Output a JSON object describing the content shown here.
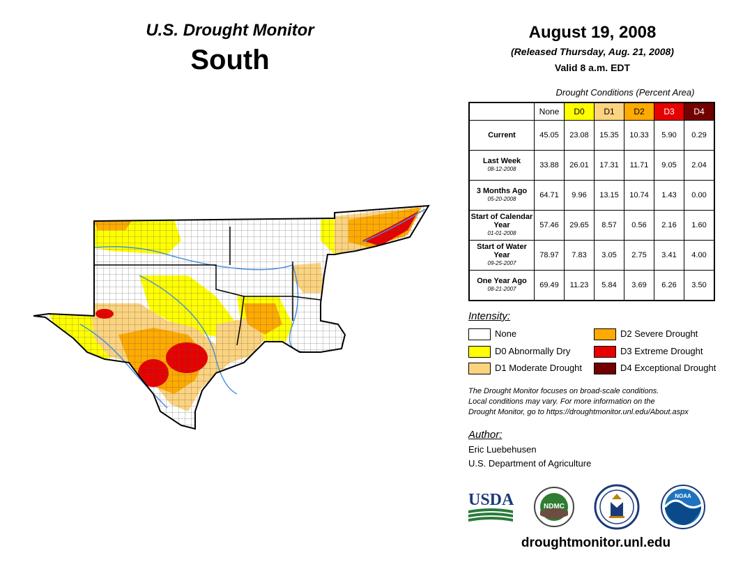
{
  "header": {
    "title": "U.S. Drought Monitor",
    "region": "South",
    "date": "August 19, 2008",
    "released": "(Released Thursday, Aug. 21, 2008)",
    "valid": "Valid 8 a.m. EDT"
  },
  "table": {
    "caption": "Drought Conditions (Percent Area)",
    "columns": [
      {
        "label": "None",
        "color": "#ffffff"
      },
      {
        "label": "D0",
        "color": "#ffff00"
      },
      {
        "label": "D1",
        "color": "#fcd37f"
      },
      {
        "label": "D2",
        "color": "#ffaa00"
      },
      {
        "label": "D3",
        "color": "#e60000"
      },
      {
        "label": "D4",
        "color": "#730000"
      }
    ],
    "rows": [
      {
        "label": "Current",
        "sub": "",
        "values": [
          "45.05",
          "23.08",
          "15.35",
          "10.33",
          "5.90",
          "0.29"
        ]
      },
      {
        "label": "Last Week",
        "sub": "08-12-2008",
        "values": [
          "33.88",
          "26.01",
          "17.31",
          "11.71",
          "9.05",
          "2.04"
        ]
      },
      {
        "label": "3 Months Ago",
        "sub": "05-20-2008",
        "values": [
          "64.71",
          "9.96",
          "13.15",
          "10.74",
          "1.43",
          "0.00"
        ]
      },
      {
        "label": "Start of Calendar Year",
        "sub": "01-01-2008",
        "values": [
          "57.46",
          "29.65",
          "8.57",
          "0.56",
          "2.16",
          "1.60"
        ]
      },
      {
        "label": "Start of Water Year",
        "sub": "09-25-2007",
        "values": [
          "78.97",
          "7.83",
          "3.05",
          "2.75",
          "3.41",
          "4.00"
        ]
      },
      {
        "label": "One Year Ago",
        "sub": "08-21-2007",
        "values": [
          "69.49",
          "11.23",
          "5.84",
          "3.69",
          "6.26",
          "3.50"
        ]
      }
    ]
  },
  "legend": {
    "title": "Intensity:",
    "items": [
      {
        "label": "None",
        "color": "#ffffff"
      },
      {
        "label": "D0 Abnormally Dry",
        "color": "#ffff00"
      },
      {
        "label": "D1 Moderate Drought",
        "color": "#fcd37f"
      },
      {
        "label": "D2 Severe Drought",
        "color": "#ffaa00"
      },
      {
        "label": "D3 Extreme Drought",
        "color": "#e60000"
      },
      {
        "label": "D4 Exceptional Drought",
        "color": "#730000"
      }
    ]
  },
  "note": {
    "line1": "The Drought Monitor focuses on broad-scale conditions.",
    "line2": "Local conditions may vary. For more information on the",
    "line3": "Drought Monitor, go to https://droughtmonitor.unl.edu/About.aspx"
  },
  "author": {
    "heading": "Author:",
    "name": "Eric Luebehusen",
    "org": "U.S. Department of Agriculture"
  },
  "logos": {
    "usda": "USDA",
    "ndmc": "NDMC",
    "noaa": "NOAA"
  },
  "website": "droughtmonitor.unl.edu"
}
